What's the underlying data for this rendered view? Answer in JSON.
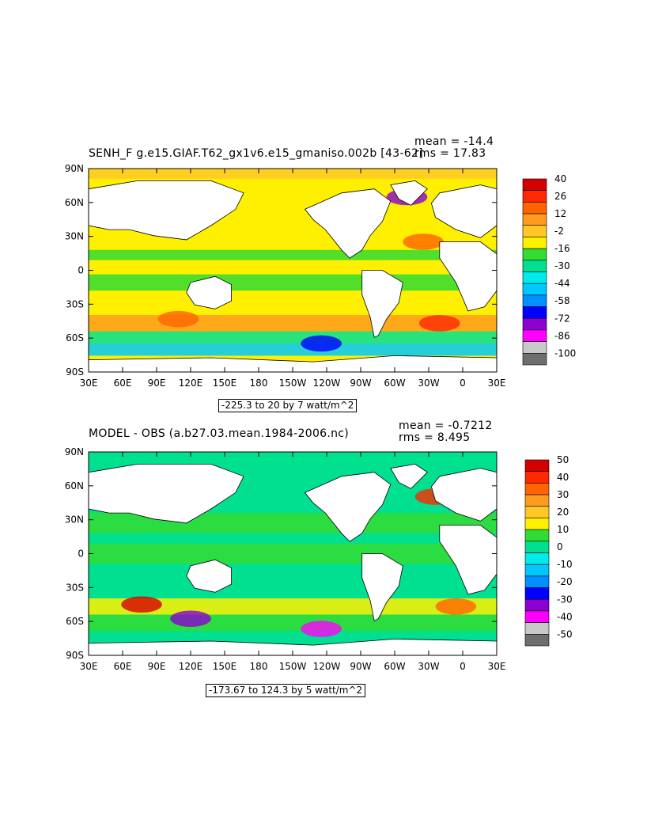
{
  "chart_data": [
    {
      "type": "heatmap",
      "title": "SENH_F g.e15.GIAF.T62_gx1v6.e15_gmaniso.002b [43-62]",
      "stats": {
        "mean_label": "mean = -14.4",
        "rms_label": "rms = 17.83",
        "mean": -14.4,
        "rms": 17.83
      },
      "range_label": "-225.3 to 20 by 7 watt/m^2",
      "x_ticks": [
        "30E",
        "60E",
        "90E",
        "120E",
        "150E",
        "180",
        "150W",
        "120W",
        "90W",
        "60W",
        "30W",
        "0",
        "30E"
      ],
      "y_ticks": [
        "90N",
        "60N",
        "30N",
        "0",
        "30S",
        "60S",
        "90S"
      ],
      "colorbar": {
        "labels": [
          "40",
          "26",
          "12",
          "-2",
          "-16",
          "-30",
          "-44",
          "-58",
          "-72",
          "-86",
          "-100"
        ],
        "colors": [
          "#d40000",
          "#ff2800",
          "#ff6400",
          "#ff9b1e",
          "#ffc828",
          "#fff000",
          "#32dc32",
          "#00e090",
          "#00ecec",
          "#00c8ff",
          "#0090ff",
          "#0000ff",
          "#8c00d2",
          "#ff00ff",
          "#c8c8c8",
          "#6e6e6e"
        ]
      }
    },
    {
      "type": "heatmap",
      "title": "MODEL - OBS (a.b27.03.mean.1984-2006.nc)",
      "stats": {
        "mean_label": "mean = -0.7212",
        "rms_label": "rms = 8.495",
        "mean": -0.7212,
        "rms": 8.495
      },
      "range_label": "-173.67 to 124.3 by 5 watt/m^2",
      "x_ticks": [
        "30E",
        "60E",
        "90E",
        "120E",
        "150E",
        "180",
        "150W",
        "120W",
        "90W",
        "60W",
        "30W",
        "0",
        "30E"
      ],
      "y_ticks": [
        "90N",
        "60N",
        "30N",
        "0",
        "30S",
        "60S",
        "90S"
      ],
      "colorbar": {
        "labels": [
          "50",
          "40",
          "30",
          "20",
          "10",
          "0",
          "-10",
          "-20",
          "-30",
          "-40",
          "-50"
        ],
        "colors": [
          "#d40000",
          "#ff2800",
          "#ff6400",
          "#ff9b1e",
          "#ffc828",
          "#fff000",
          "#32dc32",
          "#00e090",
          "#00ecec",
          "#00c8ff",
          "#0090ff",
          "#0000ff",
          "#8c00d2",
          "#ff00ff",
          "#c8c8c8",
          "#6e6e6e"
        ]
      }
    }
  ]
}
